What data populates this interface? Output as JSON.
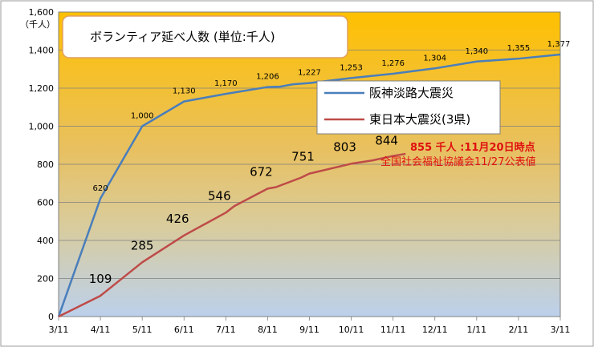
{
  "chart_data": {
    "type": "line",
    "title": "ボランティア延べ人数 (単位:千人)",
    "unit_label": "（千人）",
    "categories": [
      "3/11",
      "4/11",
      "5/11",
      "6/11",
      "7/11",
      "8/11",
      "9/11",
      "10/11",
      "11/11",
      "12/11",
      "1/11",
      "2/11",
      "3/11"
    ],
    "ylim": [
      0,
      1600
    ],
    "yticks": [
      0,
      200,
      400,
      600,
      800,
      1000,
      1200,
      1400,
      1600
    ],
    "ytick_labels": [
      "0",
      "200",
      "400",
      "600",
      "800",
      "1,000",
      "1,200",
      "1,400",
      "1,600"
    ],
    "grid": true,
    "legend_position": "center-right",
    "series": [
      {
        "name": "阪神淡路大震災",
        "color": "#4a7ebb",
        "points": [
          {
            "x": 0,
            "y": 0,
            "label": ""
          },
          {
            "x": 1,
            "y": 620,
            "label": "620"
          },
          {
            "x": 2,
            "y": 1000,
            "label": "1,000"
          },
          {
            "x": 3,
            "y": 1130,
            "label": "1,130"
          },
          {
            "x": 3.5,
            "y": 1150,
            "label": ""
          },
          {
            "x": 4,
            "y": 1170,
            "label": "1,170"
          },
          {
            "x": 5,
            "y": 1206,
            "label": "1,206"
          },
          {
            "x": 5.3,
            "y": 1208,
            "label": ""
          },
          {
            "x": 5.6,
            "y": 1220,
            "label": ""
          },
          {
            "x": 6,
            "y": 1227,
            "label": "1,227"
          },
          {
            "x": 7,
            "y": 1253,
            "label": "1,253"
          },
          {
            "x": 8,
            "y": 1276,
            "label": "1,276"
          },
          {
            "x": 9,
            "y": 1304,
            "label": "1,304"
          },
          {
            "x": 10,
            "y": 1340,
            "label": "1,340"
          },
          {
            "x": 11,
            "y": 1355,
            "label": "1,355"
          },
          {
            "x": 12,
            "y": 1377,
            "label": "1,377"
          }
        ]
      },
      {
        "name": "東日本大震災(3県)",
        "color": "#be4b48",
        "points": [
          {
            "x": 0,
            "y": 0,
            "label": ""
          },
          {
            "x": 1,
            "y": 109,
            "label": "109"
          },
          {
            "x": 2,
            "y": 285,
            "label": "285"
          },
          {
            "x": 3,
            "y": 426,
            "label": "426"
          },
          {
            "x": 4,
            "y": 546,
            "label": "546"
          },
          {
            "x": 4.2,
            "y": 580,
            "label": ""
          },
          {
            "x": 5,
            "y": 672,
            "label": "672"
          },
          {
            "x": 5.2,
            "y": 680,
            "label": ""
          },
          {
            "x": 5.8,
            "y": 730,
            "label": ""
          },
          {
            "x": 6,
            "y": 751,
            "label": "751"
          },
          {
            "x": 7,
            "y": 803,
            "label": "803"
          },
          {
            "x": 7.5,
            "y": 820,
            "label": ""
          },
          {
            "x": 8,
            "y": 844,
            "label": "844"
          },
          {
            "x": 8.3,
            "y": 855,
            "label": ""
          }
        ]
      }
    ],
    "annotation": {
      "value": "855",
      "text1": " 千人 :11月20日時点",
      "text2": "全国社会福祉協議会11/27公表値"
    }
  }
}
